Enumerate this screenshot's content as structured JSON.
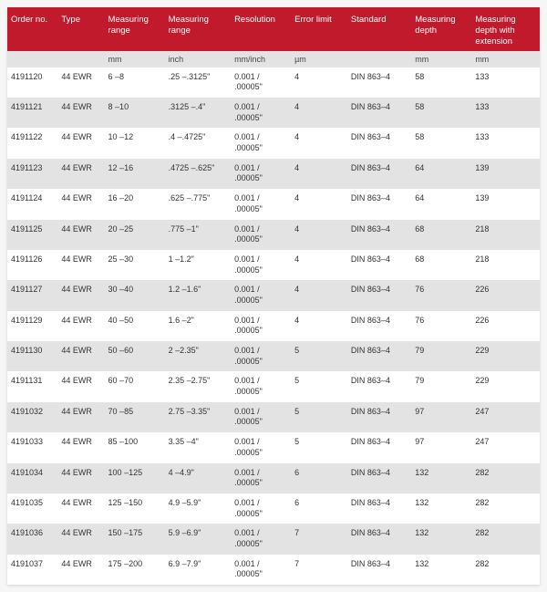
{
  "colors": {
    "header_bg": "#c11a2c",
    "header_fg": "#ffffff",
    "row_even_bg": "#ffffff",
    "row_odd_bg": "#e3e3e3",
    "units_bg": "#e3e3e3",
    "text": "#333333"
  },
  "table": {
    "columns": [
      {
        "label": "Order no.",
        "unit": ""
      },
      {
        "label": "Type",
        "unit": ""
      },
      {
        "label": "Measuring range",
        "unit": "mm"
      },
      {
        "label": "Measuring range",
        "unit": "inch"
      },
      {
        "label": "Resolution",
        "unit": "mm/inch"
      },
      {
        "label": "Error limit",
        "unit": "µm"
      },
      {
        "label": "Standard",
        "unit": ""
      },
      {
        "label": "Measuring depth",
        "unit": "mm"
      },
      {
        "label": "Measuring depth with extension",
        "unit": "mm"
      }
    ],
    "rows": [
      [
        "4191120",
        "44 EWR",
        "6 –8",
        ".25 –.3125\"",
        "0.001 / .00005\"",
        "4",
        "DIN 863–4",
        "58",
        "133"
      ],
      [
        "4191121",
        "44 EWR",
        "8 –10",
        ".3125 –.4\"",
        "0.001 / .00005\"",
        "4",
        "DIN 863–4",
        "58",
        "133"
      ],
      [
        "4191122",
        "44 EWR",
        "10 –12",
        ".4 –.4725\"",
        "0.001 / .00005\"",
        "4",
        "DIN 863–4",
        "58",
        "133"
      ],
      [
        "4191123",
        "44 EWR",
        "12 –16",
        ".4725 –.625\"",
        "0.001 / .00005\"",
        "4",
        "DIN 863–4",
        "64",
        "139"
      ],
      [
        "4191124",
        "44 EWR",
        "16 –20",
        ".625 –.775\"",
        "0.001 / .00005\"",
        "4",
        "DIN 863–4",
        "64",
        "139"
      ],
      [
        "4191125",
        "44 EWR",
        "20 –25",
        ".775 –1\"",
        "0.001 / .00005\"",
        "4",
        "DIN 863–4",
        "68",
        "218"
      ],
      [
        "4191126",
        "44 EWR",
        "25 –30",
        "1 –1.2\"",
        "0.001 / .00005\"",
        "4",
        "DIN 863–4",
        "68",
        "218"
      ],
      [
        "4191127",
        "44 EWR",
        "30 –40",
        "1.2 –1.6\"",
        "0.001 / .00005\"",
        "4",
        "DIN 863–4",
        "76",
        "226"
      ],
      [
        "4191129",
        "44 EWR",
        "40 –50",
        "1.6 –2\"",
        "0.001 / .00005\"",
        "4",
        "DIN 863–4",
        "76",
        "226"
      ],
      [
        "4191130",
        "44 EWR",
        "50 –60",
        "2 –2.35\"",
        "0.001 / .00005\"",
        "5",
        "DIN 863–4",
        "79",
        "229"
      ],
      [
        "4191131",
        "44 EWR",
        "60 –70",
        "2.35 –2.75\"",
        "0.001 / .00005\"",
        "5",
        "DIN 863–4",
        "79",
        "229"
      ],
      [
        "4191032",
        "44 EWR",
        "70 –85",
        "2.75 –3.35\"",
        "0.001 / .00005\"",
        "5",
        "DIN 863–4",
        "97",
        "247"
      ],
      [
        "4191033",
        "44 EWR",
        "85 –100",
        "3.35 –4\"",
        "0.001 / .00005\"",
        "5",
        "DIN 863–4",
        "97",
        "247"
      ],
      [
        "4191034",
        "44 EWR",
        "100 –125",
        "4 –4.9\"",
        "0.001 / .00005\"",
        "6",
        "DIN 863–4",
        "132",
        "282"
      ],
      [
        "4191035",
        "44 EWR",
        "125 –150",
        "4.9 –5.9\"",
        "0.001 / .00005\"",
        "6",
        "DIN 863–4",
        "132",
        "282"
      ],
      [
        "4191036",
        "44 EWR",
        "150 –175",
        "5.9 –6.9\"",
        "0.001 / .00005\"",
        "7",
        "DIN 863–4",
        "132",
        "282"
      ],
      [
        "4191037",
        "44 EWR",
        "175 –200",
        "6.9 –7.9\"",
        "0.001 / .00005\"",
        "7",
        "DIN 863–4",
        "132",
        "282"
      ]
    ]
  }
}
